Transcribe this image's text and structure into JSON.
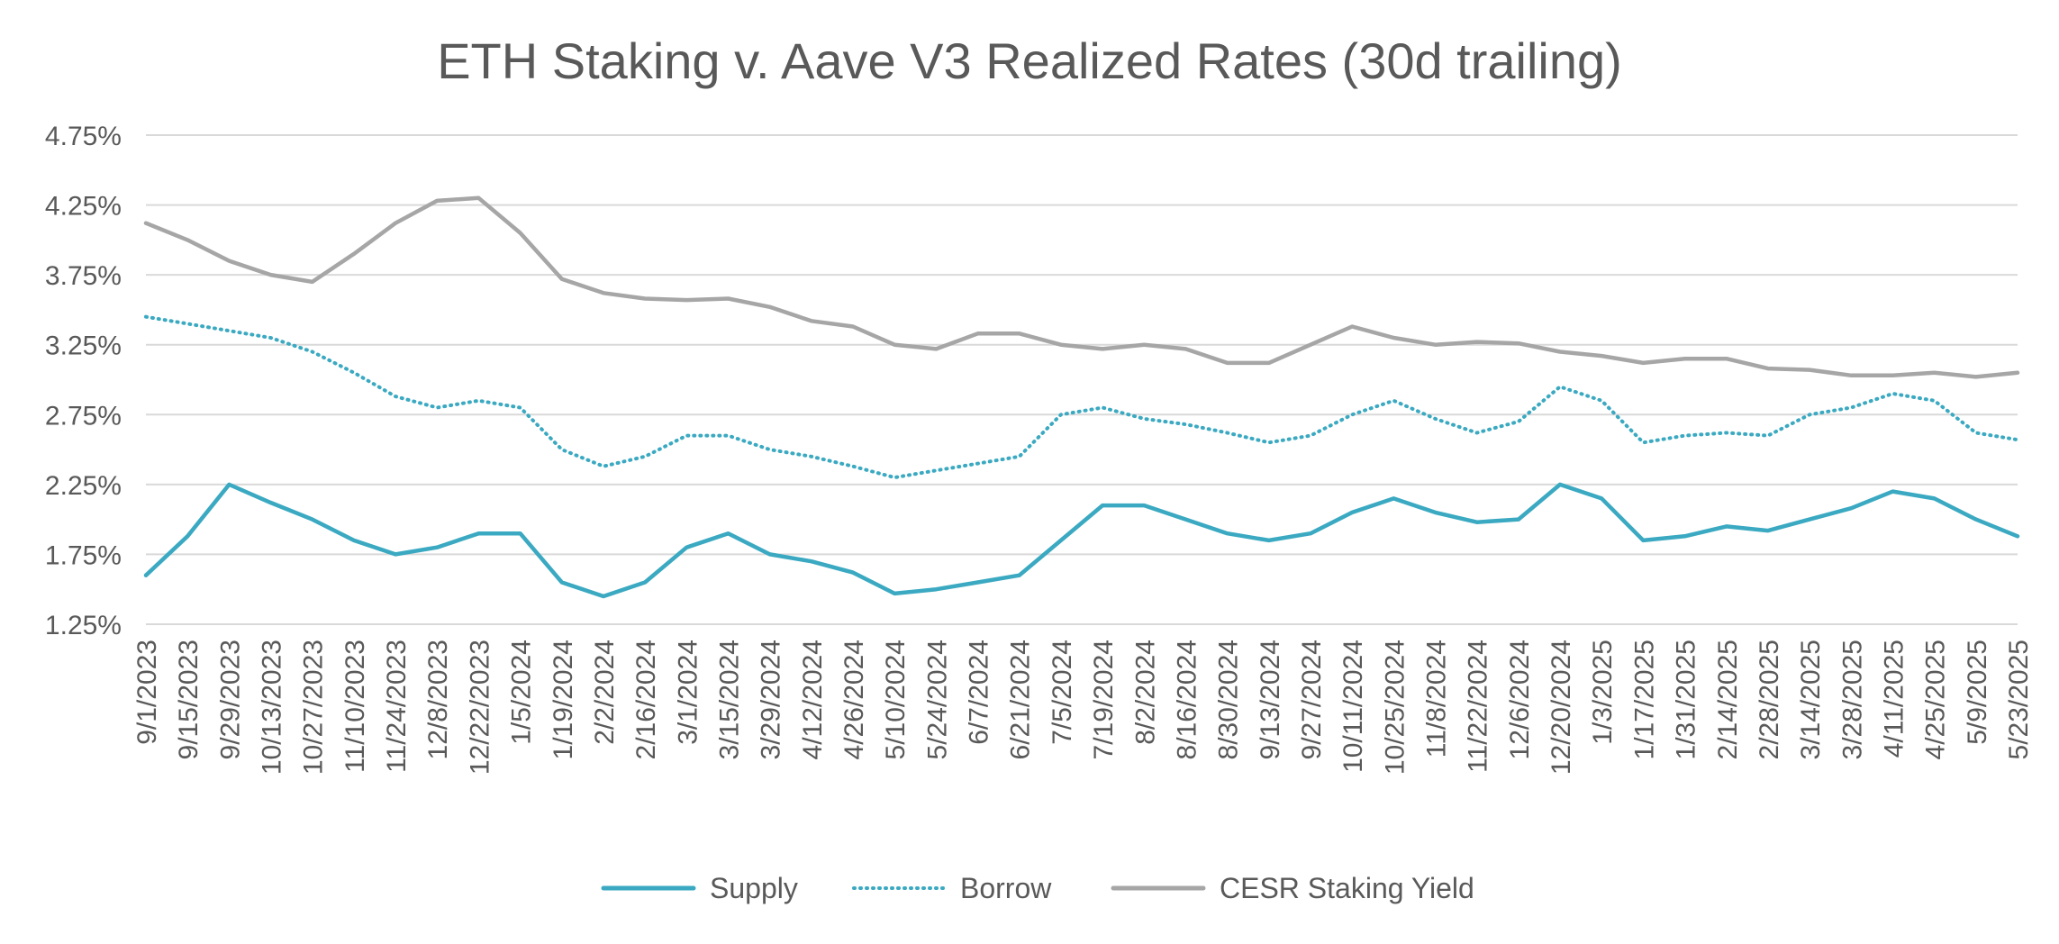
{
  "chart_data": {
    "type": "line",
    "title": "ETH Staking v. Aave V3 Realized Rates (30d trailing)",
    "xlabel": "",
    "ylabel": "",
    "ylim": [
      1.25,
      4.75
    ],
    "y_ticks": [
      "1.25%",
      "1.75%",
      "2.25%",
      "2.75%",
      "3.25%",
      "3.75%",
      "4.25%",
      "4.75%"
    ],
    "y_tick_values": [
      1.25,
      1.75,
      2.25,
      2.75,
      3.25,
      3.75,
      4.25,
      4.75
    ],
    "x_ticks": [
      "9/1/2023",
      "9/15/2023",
      "9/29/2023",
      "10/13/2023",
      "10/27/2023",
      "11/10/2023",
      "11/24/2023",
      "12/8/2023",
      "12/22/2023",
      "1/5/2024",
      "1/19/2024",
      "2/2/2024",
      "2/16/2024",
      "3/1/2024",
      "3/15/2024",
      "3/29/2024",
      "4/12/2024",
      "4/26/2024",
      "5/10/2024",
      "5/24/2024",
      "6/7/2024",
      "6/21/2024",
      "7/5/2024",
      "7/19/2024",
      "8/2/2024",
      "8/16/2024",
      "8/30/2024",
      "9/13/2024",
      "9/27/2024",
      "10/11/2024",
      "10/25/2024",
      "11/8/2024",
      "11/22/2024",
      "12/6/2024",
      "12/20/2024",
      "1/3/2025",
      "1/17/2025",
      "1/31/2025",
      "2/14/2025",
      "2/28/2025",
      "3/14/2025",
      "3/28/2025",
      "4/11/2025",
      "4/25/2025",
      "5/9/2025",
      "5/23/2025"
    ],
    "grid": true,
    "legend_position": "bottom",
    "series": [
      {
        "name": "Supply",
        "color": "#3aa9c1",
        "style": "solid",
        "values": [
          1.6,
          1.88,
          2.25,
          2.12,
          2.0,
          1.85,
          1.75,
          1.8,
          1.9,
          1.9,
          1.55,
          1.45,
          1.55,
          1.8,
          1.9,
          1.75,
          1.7,
          1.62,
          1.47,
          1.5,
          1.55,
          1.6,
          1.85,
          2.1,
          2.1,
          2.0,
          1.9,
          1.85,
          1.9,
          2.05,
          2.15,
          2.05,
          1.98,
          2.0,
          2.25,
          2.15,
          1.85,
          1.88,
          1.95,
          1.92,
          2.0,
          2.08,
          2.2,
          2.15,
          2.0,
          1.88
        ]
      },
      {
        "name": "Borrow",
        "color": "#3aa9c1",
        "style": "dotted",
        "values": [
          3.45,
          3.4,
          3.35,
          3.3,
          3.2,
          3.05,
          2.88,
          2.8,
          2.85,
          2.8,
          2.5,
          2.38,
          2.45,
          2.6,
          2.6,
          2.5,
          2.45,
          2.38,
          2.3,
          2.35,
          2.4,
          2.45,
          2.75,
          2.8,
          2.72,
          2.68,
          2.62,
          2.55,
          2.6,
          2.75,
          2.85,
          2.72,
          2.62,
          2.7,
          2.95,
          2.85,
          2.55,
          2.6,
          2.62,
          2.6,
          2.75,
          2.8,
          2.9,
          2.85,
          2.62,
          2.57
        ]
      },
      {
        "name": "CESR Staking Yield",
        "color": "#a6a6a6",
        "style": "solid",
        "values": [
          4.12,
          4.0,
          3.85,
          3.75,
          3.7,
          3.9,
          4.12,
          4.28,
          4.3,
          4.05,
          3.72,
          3.62,
          3.58,
          3.57,
          3.58,
          3.52,
          3.42,
          3.38,
          3.25,
          3.22,
          3.33,
          3.33,
          3.25,
          3.22,
          3.25,
          3.22,
          3.12,
          3.12,
          3.25,
          3.38,
          3.3,
          3.25,
          3.27,
          3.26,
          3.2,
          3.17,
          3.12,
          3.15,
          3.15,
          3.08,
          3.07,
          3.03,
          3.03,
          3.05,
          3.02,
          3.05
        ]
      }
    ]
  }
}
